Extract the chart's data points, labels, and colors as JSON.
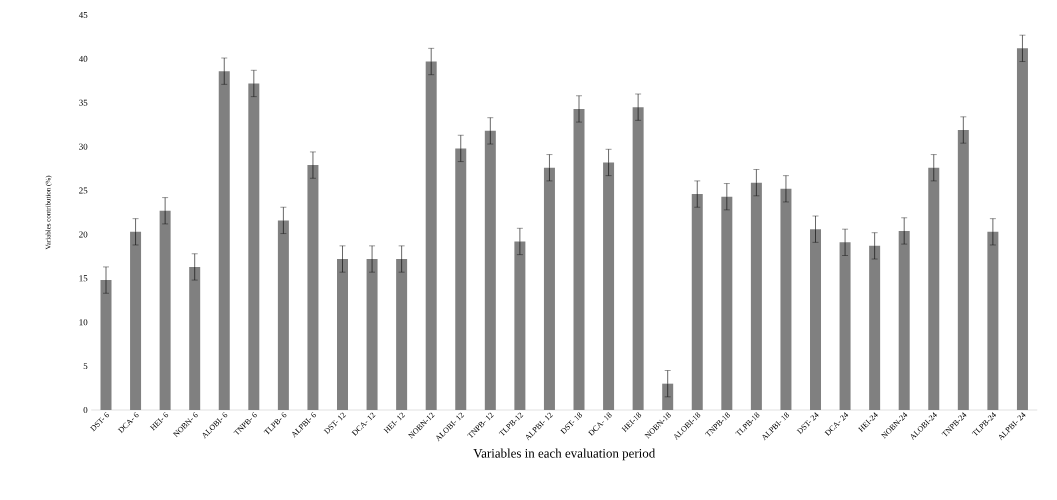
{
  "chart_data": {
    "type": "bar",
    "categories": [
      "DST- 6",
      "DCA- 6",
      "HEI- 6",
      "NOBN- 6",
      "ALOBI- 6",
      "TNPB- 6",
      "TLPB- 6",
      "ALPBI- 6",
      "DST- 12",
      "DCA- 12",
      "HEI- 12",
      "NOBN-12",
      "ALOBI- 12",
      "TNPB- 12",
      "TLPB-12",
      "ALPBI- 12",
      "DST- 18",
      "DCA- 18",
      "HEI-18",
      "NOBN-18",
      "ALOBI-18",
      "TNPB-18",
      "TLPB-18",
      "ALPBI- 18",
      "DST- 24",
      "DCA- 24",
      "HEI-24",
      "NOBN-24",
      "ALOBI-24",
      "TNPB-24",
      "TLPB-24",
      "ALPBI- 24"
    ],
    "values": [
      14.8,
      20.3,
      22.7,
      16.3,
      38.6,
      37.2,
      21.6,
      27.9,
      17.2,
      17.2,
      17.2,
      39.7,
      29.8,
      31.8,
      19.2,
      27.6,
      34.3,
      28.2,
      34.5,
      3.0,
      24.6,
      24.3,
      25.9,
      25.2,
      20.6,
      19.1,
      18.7,
      20.4,
      27.6,
      31.9,
      20.3,
      41.2
    ],
    "errors": [
      1.5,
      1.5,
      1.5,
      1.5,
      1.5,
      1.5,
      1.5,
      1.5,
      1.5,
      1.5,
      1.5,
      1.5,
      1.5,
      1.5,
      1.5,
      1.5,
      1.5,
      1.5,
      1.5,
      1.5,
      1.5,
      1.5,
      1.5,
      1.5,
      1.5,
      1.5,
      1.5,
      1.5,
      1.5,
      1.5,
      1.5,
      1.5
    ],
    "color": "#808080",
    "xlabel": "Variables  in each evaluation period",
    "ylabel": "Variables contribution  (%)",
    "ylim": [
      0,
      45
    ],
    "yticks": [
      0,
      5,
      10,
      15,
      20,
      25,
      30,
      35,
      40,
      45
    ]
  }
}
